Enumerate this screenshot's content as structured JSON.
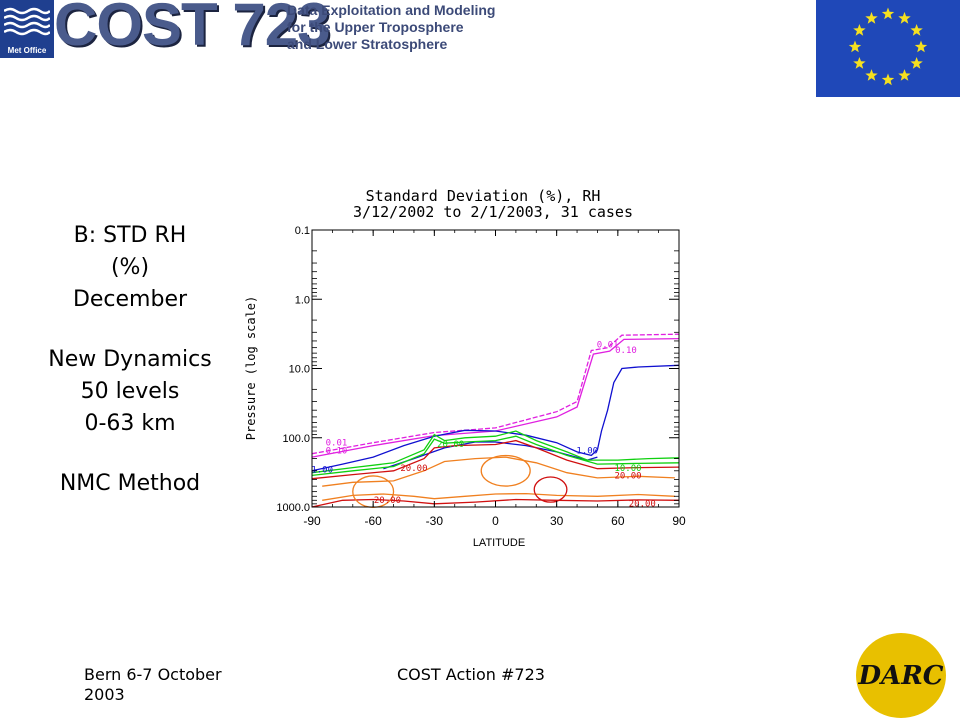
{
  "header": {
    "met_office_label": "Met Office",
    "cost_logo_text": "COST 723",
    "cost_subtitle_lines": [
      "Data Exploitation and Modeling",
      "for the Upper Troposphere",
      "and Lower Stratosphere"
    ],
    "eu_flag_icon": "eu-flag-icon"
  },
  "left_panel": {
    "line1_prefix": "B",
    "line1_rest": ": STD RH",
    "line2": "(%)",
    "line3": "December",
    "line4": "New Dynamics",
    "line5": "50 levels",
    "line6": "0-63 km",
    "line7": "NMC Method"
  },
  "footer": {
    "left_line1": "Bern 6-7 October",
    "left_line2": "2003",
    "middle": "COST Action #723",
    "darc_label": "DARC"
  },
  "chart_data": {
    "type": "contour",
    "title": "Standard Deviation (%), RH",
    "subtitle": "3/12/2002 to 2/1/2003, 31 cases",
    "xlabel": "LATITUDE",
    "ylabel": "Pressure (log scale)",
    "x_ticks": [
      "-90",
      "-60",
      "-30",
      "0",
      "30",
      "60",
      "90"
    ],
    "x_tick_values": [
      -90,
      -60,
      -30,
      0,
      30,
      60,
      90
    ],
    "xlim": [
      -90,
      90
    ],
    "y_ticks": [
      "0.1",
      "1.0",
      "10.0",
      "100.0",
      "1000.0"
    ],
    "y_tick_values": [
      0.1,
      1,
      10,
      100,
      1000
    ],
    "ylim": [
      1000,
      0.1
    ],
    "y_scale": "log",
    "colors": {
      "magenta": "#e020e0",
      "blue": "#1010d0",
      "green": "#10d010",
      "red": "#d01010",
      "orange": "#f08020"
    },
    "contours": [
      {
        "level": "0.01",
        "color": "magenta",
        "dashed": true,
        "points": [
          [
            -90,
            170
          ],
          [
            -60,
            118
          ],
          [
            -30,
            84
          ],
          [
            0,
            72
          ],
          [
            30,
            42
          ],
          [
            40,
            30
          ],
          [
            47,
            5.5
          ],
          [
            55,
            5
          ],
          [
            62,
            3.3
          ],
          [
            90,
            3.2
          ]
        ]
      },
      {
        "level": "0.10",
        "color": "magenta",
        "dashed": false,
        "points": [
          [
            -90,
            190
          ],
          [
            -60,
            130
          ],
          [
            -30,
            93
          ],
          [
            0,
            80
          ],
          [
            30,
            50
          ],
          [
            40,
            36
          ],
          [
            48,
            6.2
          ],
          [
            56,
            5.6
          ],
          [
            63,
            3.8
          ],
          [
            90,
            3.7
          ]
        ]
      },
      {
        "level": "1.00",
        "color": "blue",
        "dashed": false,
        "points": [
          [
            -90,
            300
          ],
          [
            -75,
            240
          ],
          [
            -60,
            190
          ],
          [
            -45,
            130
          ],
          [
            -30,
            95
          ],
          [
            -15,
            78
          ],
          [
            0,
            80
          ],
          [
            15,
            92
          ],
          [
            30,
            118
          ],
          [
            40,
            160
          ],
          [
            47,
            180
          ],
          [
            50,
            150
          ],
          [
            52,
            80
          ],
          [
            55,
            40
          ],
          [
            58,
            16
          ],
          [
            62,
            10
          ],
          [
            70,
            9.5
          ],
          [
            90,
            9
          ]
        ]
      },
      {
        "level": "1.00",
        "color": "blue",
        "dashed": false,
        "points": [
          [
            -55,
            280
          ],
          [
            -40,
            200
          ],
          [
            -25,
            140
          ],
          [
            -10,
            115
          ],
          [
            0,
            115
          ],
          [
            15,
            130
          ],
          [
            30,
            160
          ],
          [
            45,
            210
          ],
          [
            50,
            190
          ]
        ]
      },
      {
        "level": "10.00",
        "color": "green",
        "dashed": false,
        "points": [
          [
            -90,
            320
          ],
          [
            -70,
            270
          ],
          [
            -50,
            230
          ],
          [
            -35,
            150
          ],
          [
            -30,
            90
          ],
          [
            -25,
            110
          ],
          [
            -15,
            100
          ],
          [
            0,
            95
          ],
          [
            10,
            80
          ],
          [
            20,
            110
          ],
          [
            35,
            160
          ],
          [
            45,
            210
          ],
          [
            60,
            210
          ],
          [
            75,
            200
          ],
          [
            90,
            195
          ]
        ]
      },
      {
        "level": "20.00",
        "color": "green",
        "dashed": false,
        "points": [
          [
            -90,
            350
          ],
          [
            -70,
            300
          ],
          [
            -50,
            260
          ],
          [
            -35,
            170
          ],
          [
            -30,
            105
          ],
          [
            -25,
            120
          ],
          [
            -15,
            115
          ],
          [
            0,
            110
          ],
          [
            10,
            95
          ],
          [
            20,
            125
          ],
          [
            35,
            180
          ],
          [
            50,
            240
          ],
          [
            70,
            235
          ],
          [
            90,
            230
          ]
        ]
      },
      {
        "level": "20.00",
        "color": "red",
        "dashed": false,
        "points": [
          [
            -90,
            390
          ],
          [
            -70,
            340
          ],
          [
            -50,
            300
          ],
          [
            -35,
            200
          ],
          [
            -30,
            140
          ],
          [
            -20,
            130
          ],
          [
            0,
            125
          ],
          [
            10,
            110
          ],
          [
            20,
            140
          ],
          [
            35,
            210
          ],
          [
            50,
            280
          ],
          [
            70,
            270
          ],
          [
            90,
            265
          ]
        ]
      },
      {
        "level": "20.00",
        "color": "red",
        "dashed": false,
        "points": [
          [
            -90,
            1000
          ],
          [
            -75,
            800
          ],
          [
            -60,
            780
          ],
          [
            -45,
            820
          ],
          [
            -30,
            900
          ],
          [
            -10,
            850
          ],
          [
            10,
            780
          ],
          [
            30,
            800
          ],
          [
            50,
            820
          ],
          [
            70,
            790
          ],
          [
            90,
            800
          ]
        ]
      },
      {
        "level": "",
        "color": "orange",
        "dashed": false,
        "points": [
          [
            -85,
            500
          ],
          [
            -70,
            440
          ],
          [
            -50,
            420
          ],
          [
            -35,
            300
          ],
          [
            -25,
            220
          ],
          [
            -10,
            200
          ],
          [
            5,
            190
          ],
          [
            20,
            230
          ],
          [
            35,
            320
          ],
          [
            50,
            380
          ],
          [
            70,
            360
          ],
          [
            88,
            380
          ]
        ]
      },
      {
        "level": "",
        "color": "orange",
        "dashed": false,
        "points": [
          [
            -85,
            800
          ],
          [
            -70,
            680
          ],
          [
            -55,
            650
          ],
          [
            -40,
            700
          ],
          [
            -30,
            760
          ],
          [
            -15,
            700
          ],
          [
            0,
            650
          ],
          [
            15,
            640
          ],
          [
            30,
            680
          ],
          [
            50,
            700
          ],
          [
            70,
            660
          ],
          [
            88,
            700
          ]
        ]
      }
    ],
    "closed_contours": [
      {
        "color": "orange",
        "center": [
          5,
          300
        ],
        "rx": 12,
        "ry_ratio": 1.6
      },
      {
        "color": "red",
        "center": [
          27,
          560
        ],
        "rx": 8,
        "ry_ratio": 1.3
      },
      {
        "color": "orange",
        "center": [
          -60,
          600
        ],
        "rx": 10,
        "ry_ratio": 1.3
      }
    ],
    "labels": [
      {
        "text": "0.01",
        "color": "magenta",
        "x": 55,
        "y": 5
      },
      {
        "text": "0.10",
        "color": "magenta",
        "x": 64,
        "y": 6
      },
      {
        "text": "0.01",
        "color": "magenta",
        "x": -78,
        "y": 130
      },
      {
        "text": "0.10",
        "color": "magenta",
        "x": -78,
        "y": 170
      },
      {
        "text": "1.00",
        "color": "blue",
        "x": 45,
        "y": 170
      },
      {
        "text": "1.00",
        "color": "blue",
        "x": -85,
        "y": 320
      },
      {
        "text": "20.00",
        "color": "green",
        "x": -22,
        "y": 135
      },
      {
        "text": "20.00",
        "color": "red",
        "x": -40,
        "y": 300
      },
      {
        "text": "10.00",
        "color": "green",
        "x": 65,
        "y": 300
      },
      {
        "text": "20.00",
        "color": "red",
        "x": 65,
        "y": 390
      },
      {
        "text": "20.00",
        "color": "red",
        "x": -53,
        "y": 880
      },
      {
        "text": "20.00",
        "color": "red",
        "x": 72,
        "y": 980
      }
    ]
  }
}
